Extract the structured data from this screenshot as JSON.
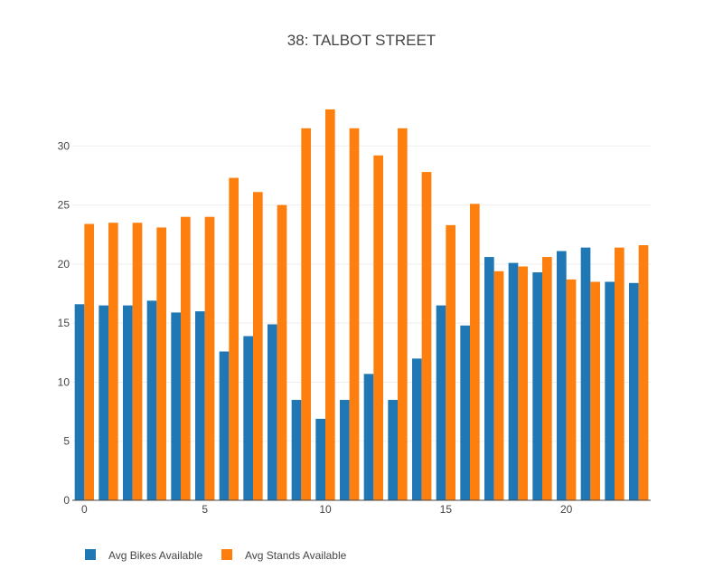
{
  "chart_data": {
    "type": "bar",
    "title": "38: TALBOT STREET",
    "xlabel": "",
    "ylabel": "",
    "x": [
      0,
      1,
      2,
      3,
      4,
      5,
      6,
      7,
      8,
      9,
      10,
      11,
      12,
      13,
      14,
      15,
      16,
      17,
      18,
      19,
      20,
      21,
      22,
      23
    ],
    "xticks": [
      0,
      5,
      10,
      15,
      20
    ],
    "yticks": [
      0,
      5,
      10,
      15,
      20,
      25,
      30
    ],
    "ylim": [
      0,
      34.7
    ],
    "xlim": [
      -0.5,
      23.5
    ],
    "grid": true,
    "legend_position": "bottom-left",
    "series": [
      {
        "name": "Avg Bikes Available",
        "color": "#1f77b4",
        "values": [
          16.6,
          16.5,
          16.5,
          16.9,
          15.9,
          16.0,
          12.6,
          13.9,
          14.9,
          8.5,
          6.9,
          8.5,
          10.7,
          8.5,
          12.0,
          16.5,
          14.8,
          20.6,
          20.1,
          19.3,
          21.1,
          21.4,
          18.5,
          18.4
        ]
      },
      {
        "name": "Avg Stands Available",
        "color": "#ff7f0e",
        "values": [
          23.4,
          23.5,
          23.5,
          23.1,
          24.0,
          24.0,
          27.3,
          26.1,
          25.0,
          31.5,
          33.1,
          31.5,
          29.2,
          31.5,
          27.8,
          23.3,
          25.1,
          19.4,
          19.8,
          20.6,
          18.7,
          18.5,
          21.4,
          21.6
        ]
      }
    ]
  }
}
